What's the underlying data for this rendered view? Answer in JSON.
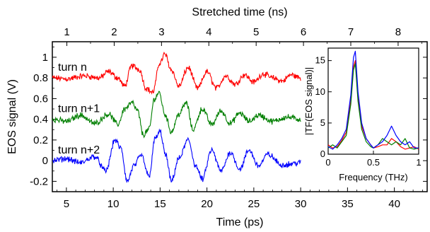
{
  "chart_data": [
    {
      "type": "line",
      "xlabel": "Time (ps)",
      "ylabel": "EOS signal (V)",
      "xlim": [
        3.5,
        43.5
      ],
      "ylim": [
        -0.3,
        1.15
      ],
      "xticks": [
        5,
        10,
        15,
        20,
        25,
        30,
        35,
        40
      ],
      "yticks": [
        -0.2,
        0,
        0.2,
        0.4,
        0.6,
        0.8,
        1
      ],
      "ytick_labels": [
        "-0.2",
        "0",
        "0.2",
        "0.4",
        "0.6",
        "0.8",
        "1"
      ],
      "top_axis": {
        "label": "Stretched time (ns)",
        "ticks": [
          1,
          2,
          3,
          4,
          5,
          6,
          7,
          8
        ],
        "scale_ps_per_ns": 5.05
      },
      "grid": false,
      "legend": "none",
      "series": [
        {
          "name": "turn n",
          "color": "#ff0000",
          "baseline": 0.8,
          "keypoints": [
            [
              3.5,
              0.8
            ],
            [
              5,
              0.79
            ],
            [
              7,
              0.82
            ],
            [
              8.5,
              0.8
            ],
            [
              9.5,
              0.86
            ],
            [
              10.5,
              0.8
            ],
            [
              11.2,
              0.72
            ],
            [
              12,
              0.92
            ],
            [
              12.8,
              0.88
            ],
            [
              13.5,
              0.7
            ],
            [
              14.2,
              0.66
            ],
            [
              15,
              0.95
            ],
            [
              15.5,
              1.03
            ],
            [
              16.2,
              0.88
            ],
            [
              17,
              0.72
            ],
            [
              18,
              0.9
            ],
            [
              19,
              0.7
            ],
            [
              20,
              0.86
            ],
            [
              21,
              0.7
            ],
            [
              22,
              0.82
            ],
            [
              23,
              0.74
            ],
            [
              24,
              0.83
            ],
            [
              25,
              0.76
            ],
            [
              26,
              0.84
            ],
            [
              27,
              0.8
            ],
            [
              28,
              0.77
            ],
            [
              29,
              0.83
            ],
            [
              30,
              0.8
            ]
          ]
        },
        {
          "name": "turn n+1",
          "color": "#007f00",
          "baseline": 0.4,
          "keypoints": [
            [
              3.5,
              0.4
            ],
            [
              5,
              0.38
            ],
            [
              6.5,
              0.44
            ],
            [
              8,
              0.36
            ],
            [
              9.5,
              0.45
            ],
            [
              10.5,
              0.35
            ],
            [
              11.2,
              0.5
            ],
            [
              12,
              0.56
            ],
            [
              12.6,
              0.48
            ],
            [
              13.2,
              0.25
            ],
            [
              13.8,
              0.3
            ],
            [
              14.4,
              0.6
            ],
            [
              14.9,
              0.66
            ],
            [
              15.5,
              0.45
            ],
            [
              16.2,
              0.28
            ],
            [
              17,
              0.45
            ],
            [
              17.8,
              0.56
            ],
            [
              18.5,
              0.3
            ],
            [
              19.5,
              0.5
            ],
            [
              20.5,
              0.35
            ],
            [
              21.5,
              0.48
            ],
            [
              22.5,
              0.36
            ],
            [
              23.5,
              0.46
            ],
            [
              24.5,
              0.38
            ],
            [
              25.5,
              0.44
            ],
            [
              27,
              0.38
            ],
            [
              28.5,
              0.42
            ],
            [
              30,
              0.4
            ]
          ]
        },
        {
          "name": "turn n+2",
          "color": "#0000ff",
          "baseline": 0.0,
          "keypoints": [
            [
              3.5,
              0.0
            ],
            [
              5,
              0.02
            ],
            [
              6.5,
              -0.02
            ],
            [
              8,
              0.04
            ],
            [
              9.2,
              -0.1
            ],
            [
              10.2,
              0.2
            ],
            [
              10.8,
              0.12
            ],
            [
              11.5,
              -0.2
            ],
            [
              12.2,
              -0.05
            ],
            [
              13,
              0.05
            ],
            [
              13.8,
              -0.15
            ],
            [
              14.5,
              0.22
            ],
            [
              15,
              0.28
            ],
            [
              15.6,
              0.05
            ],
            [
              16.2,
              -0.2
            ],
            [
              17,
              0.02
            ],
            [
              18,
              0.2
            ],
            [
              18.8,
              -0.05
            ],
            [
              19.5,
              -0.18
            ],
            [
              20.5,
              0.1
            ],
            [
              21.5,
              -0.1
            ],
            [
              22.5,
              0.08
            ],
            [
              23.5,
              -0.08
            ],
            [
              24.5,
              0.1
            ],
            [
              25.5,
              -0.05
            ],
            [
              26.5,
              0.06
            ],
            [
              28,
              -0.04
            ],
            [
              30,
              -0.02
            ]
          ]
        }
      ]
    },
    {
      "type": "line",
      "role": "inset",
      "xlabel": "Frequency (THz)",
      "ylabel": "|TF(EOS signal)|",
      "xlim": [
        0,
        1
      ],
      "ylim": [
        0,
        17
      ],
      "xticks": [
        0,
        0.5,
        1
      ],
      "xtick_labels": [
        "0",
        "0.5",
        "1"
      ],
      "yticks": [
        0,
        5,
        10,
        15
      ],
      "grid": false,
      "legend": "none",
      "series": [
        {
          "color": "#ff0000",
          "x": [
            0.0,
            0.05,
            0.1,
            0.15,
            0.2,
            0.25,
            0.28,
            0.3,
            0.33,
            0.37,
            0.42,
            0.47,
            0.5,
            0.55,
            0.6,
            0.65,
            0.7,
            0.75,
            0.8,
            0.85,
            0.9,
            0.95,
            1.0
          ],
          "y": [
            1.5,
            1.0,
            1.2,
            2.2,
            3.5,
            8.5,
            14.0,
            15.0,
            9.0,
            4.5,
            2.5,
            1.5,
            1.0,
            1.2,
            1.5,
            1.5,
            2.5,
            2.0,
            1.2,
            0.8,
            1.0,
            1.2,
            0.8
          ]
        },
        {
          "color": "#007f00",
          "x": [
            0.0,
            0.05,
            0.1,
            0.15,
            0.2,
            0.25,
            0.28,
            0.3,
            0.33,
            0.37,
            0.42,
            0.47,
            0.5,
            0.55,
            0.6,
            0.65,
            0.7,
            0.75,
            0.8,
            0.85,
            0.9,
            0.95,
            1.0
          ],
          "y": [
            1.0,
            1.5,
            1.0,
            2.0,
            3.0,
            8.0,
            13.5,
            14.5,
            8.5,
            4.0,
            2.0,
            1.2,
            1.0,
            1.5,
            2.5,
            2.0,
            1.5,
            2.0,
            1.5,
            2.5,
            1.0,
            0.8,
            1.0
          ]
        },
        {
          "color": "#0000ff",
          "x": [
            0.0,
            0.05,
            0.1,
            0.15,
            0.2,
            0.25,
            0.28,
            0.3,
            0.33,
            0.37,
            0.42,
            0.47,
            0.5,
            0.55,
            0.6,
            0.65,
            0.7,
            0.75,
            0.8,
            0.85,
            0.9,
            0.95,
            1.0
          ],
          "y": [
            1.2,
            0.8,
            1.5,
            2.5,
            4.0,
            9.5,
            15.5,
            16.5,
            10.0,
            5.0,
            2.5,
            1.5,
            1.0,
            1.5,
            2.0,
            3.0,
            4.5,
            3.0,
            2.0,
            1.5,
            2.0,
            1.0,
            1.0
          ]
        }
      ]
    }
  ]
}
